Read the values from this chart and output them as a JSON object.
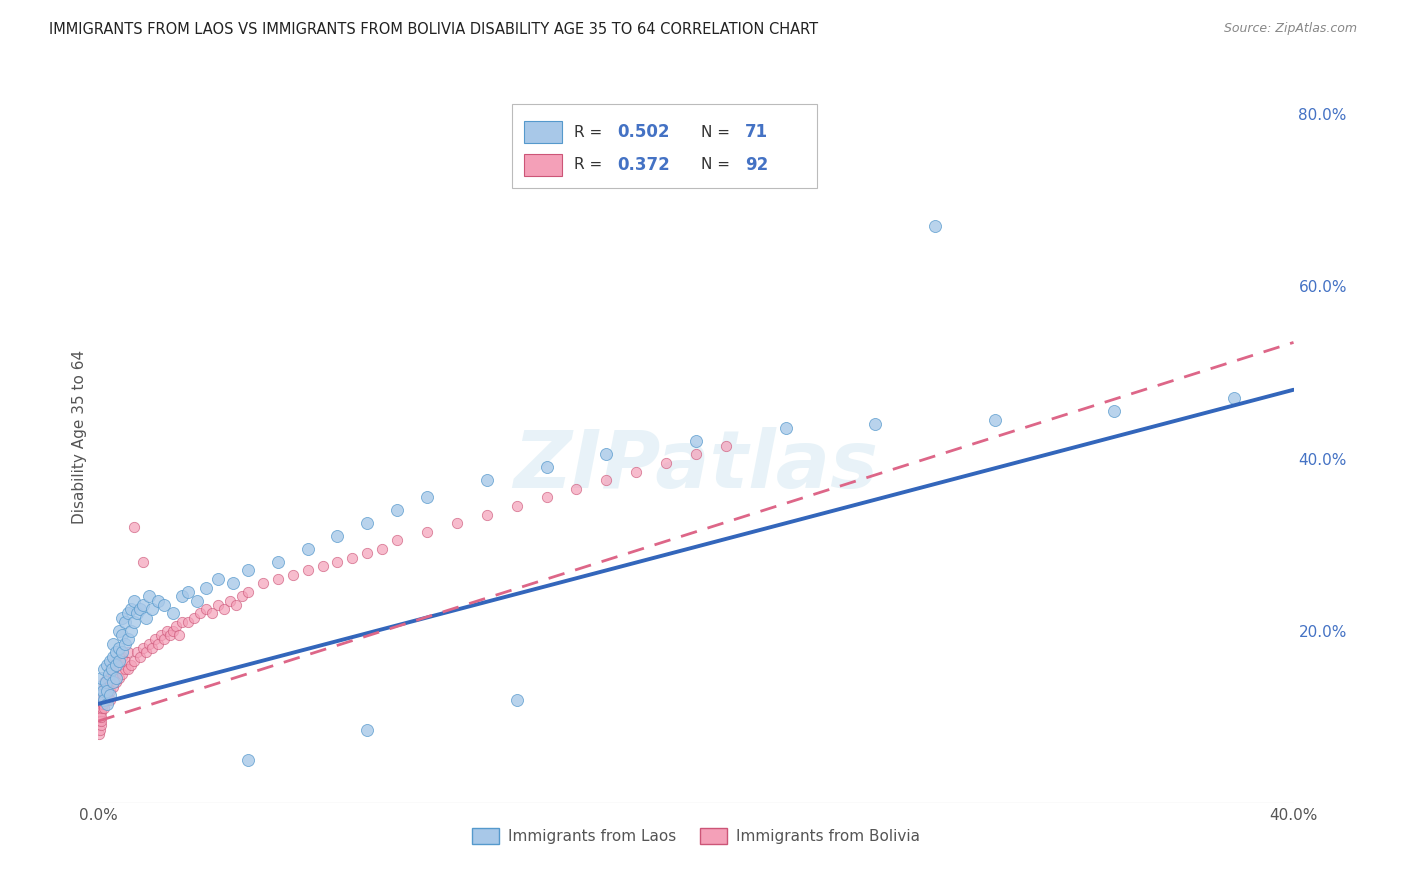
{
  "title": "IMMIGRANTS FROM LAOS VS IMMIGRANTS FROM BOLIVIA DISABILITY AGE 35 TO 64 CORRELATION CHART",
  "source": "Source: ZipAtlas.com",
  "ylabel": "Disability Age 35 to 64",
  "xlim": [
    0.0,
    0.4
  ],
  "ylim": [
    0.0,
    0.85
  ],
  "x_ticks": [
    0.0,
    0.4
  ],
  "x_tick_labels": [
    "0.0%",
    "40.0%"
  ],
  "y_ticks_right": [
    0.2,
    0.4,
    0.6,
    0.8
  ],
  "y_tick_labels_right": [
    "20.0%",
    "40.0%",
    "60.0%",
    "80.0%"
  ],
  "laos_color": "#a8c8e8",
  "laos_edge_color": "#5599cc",
  "bolivia_color": "#f4a0b8",
  "bolivia_edge_color": "#cc5577",
  "laos_line_color": "#3366bb",
  "bolivia_line_color": "#dd6688",
  "watermark_text": "ZIPatlas",
  "background_color": "#ffffff",
  "grid_color": "#cccccc",
  "legend_label_laos": "Immigrants from Laos",
  "legend_label_bolivia": "Immigrants from Bolivia",
  "laos_line_x0": 0.0,
  "laos_line_y0": 0.115,
  "laos_line_x1": 0.4,
  "laos_line_y1": 0.48,
  "bolivia_line_x0": 0.0,
  "bolivia_line_y0": 0.095,
  "bolivia_line_x1": 0.4,
  "bolivia_line_y1": 0.535,
  "laos_x": [
    0.0005,
    0.001,
    0.001,
    0.0015,
    0.002,
    0.002,
    0.0025,
    0.003,
    0.003,
    0.003,
    0.0035,
    0.004,
    0.004,
    0.0045,
    0.005,
    0.005,
    0.005,
    0.006,
    0.006,
    0.006,
    0.007,
    0.007,
    0.007,
    0.008,
    0.008,
    0.008,
    0.009,
    0.009,
    0.01,
    0.01,
    0.011,
    0.011,
    0.012,
    0.012,
    0.013,
    0.014,
    0.015,
    0.016,
    0.017,
    0.018,
    0.02,
    0.022,
    0.025,
    0.028,
    0.03,
    0.033,
    0.036,
    0.04,
    0.045,
    0.05,
    0.06,
    0.07,
    0.08,
    0.09,
    0.1,
    0.11,
    0.13,
    0.15,
    0.17,
    0.2,
    0.23,
    0.26,
    0.3,
    0.34,
    0.38,
    0.05,
    0.09,
    0.14,
    0.28
  ],
  "laos_y": [
    0.135,
    0.125,
    0.145,
    0.13,
    0.12,
    0.155,
    0.14,
    0.13,
    0.16,
    0.115,
    0.15,
    0.165,
    0.125,
    0.155,
    0.17,
    0.14,
    0.185,
    0.16,
    0.175,
    0.145,
    0.18,
    0.2,
    0.165,
    0.195,
    0.175,
    0.215,
    0.185,
    0.21,
    0.19,
    0.22,
    0.2,
    0.225,
    0.21,
    0.235,
    0.22,
    0.225,
    0.23,
    0.215,
    0.24,
    0.225,
    0.235,
    0.23,
    0.22,
    0.24,
    0.245,
    0.235,
    0.25,
    0.26,
    0.255,
    0.27,
    0.28,
    0.295,
    0.31,
    0.325,
    0.34,
    0.355,
    0.375,
    0.39,
    0.405,
    0.42,
    0.435,
    0.44,
    0.445,
    0.455,
    0.47,
    0.05,
    0.085,
    0.12,
    0.67
  ],
  "bolivia_x": [
    0.0002,
    0.0003,
    0.0004,
    0.0005,
    0.0006,
    0.0007,
    0.0008,
    0.0009,
    0.001,
    0.001,
    0.0012,
    0.0013,
    0.0014,
    0.0015,
    0.0016,
    0.0017,
    0.0018,
    0.002,
    0.002,
    0.002,
    0.0022,
    0.0025,
    0.003,
    0.003,
    0.003,
    0.0035,
    0.004,
    0.004,
    0.004,
    0.005,
    0.005,
    0.005,
    0.006,
    0.006,
    0.007,
    0.007,
    0.008,
    0.008,
    0.009,
    0.009,
    0.01,
    0.01,
    0.011,
    0.012,
    0.013,
    0.014,
    0.015,
    0.016,
    0.017,
    0.018,
    0.019,
    0.02,
    0.021,
    0.022,
    0.023,
    0.024,
    0.025,
    0.026,
    0.027,
    0.028,
    0.03,
    0.032,
    0.034,
    0.036,
    0.038,
    0.04,
    0.042,
    0.044,
    0.046,
    0.048,
    0.05,
    0.055,
    0.06,
    0.065,
    0.07,
    0.075,
    0.08,
    0.085,
    0.09,
    0.095,
    0.1,
    0.11,
    0.12,
    0.13,
    0.14,
    0.15,
    0.16,
    0.17,
    0.18,
    0.19,
    0.2,
    0.21,
    0.012,
    0.015
  ],
  "bolivia_y": [
    0.095,
    0.08,
    0.1,
    0.085,
    0.11,
    0.09,
    0.105,
    0.095,
    0.115,
    0.1,
    0.125,
    0.11,
    0.12,
    0.13,
    0.115,
    0.125,
    0.135,
    0.12,
    0.14,
    0.11,
    0.13,
    0.135,
    0.12,
    0.145,
    0.125,
    0.14,
    0.13,
    0.155,
    0.12,
    0.15,
    0.135,
    0.16,
    0.14,
    0.165,
    0.145,
    0.16,
    0.15,
    0.17,
    0.155,
    0.165,
    0.155,
    0.175,
    0.16,
    0.165,
    0.175,
    0.17,
    0.18,
    0.175,
    0.185,
    0.18,
    0.19,
    0.185,
    0.195,
    0.19,
    0.2,
    0.195,
    0.2,
    0.205,
    0.195,
    0.21,
    0.21,
    0.215,
    0.22,
    0.225,
    0.22,
    0.23,
    0.225,
    0.235,
    0.23,
    0.24,
    0.245,
    0.255,
    0.26,
    0.265,
    0.27,
    0.275,
    0.28,
    0.285,
    0.29,
    0.295,
    0.305,
    0.315,
    0.325,
    0.335,
    0.345,
    0.355,
    0.365,
    0.375,
    0.385,
    0.395,
    0.405,
    0.415,
    0.32,
    0.28
  ]
}
